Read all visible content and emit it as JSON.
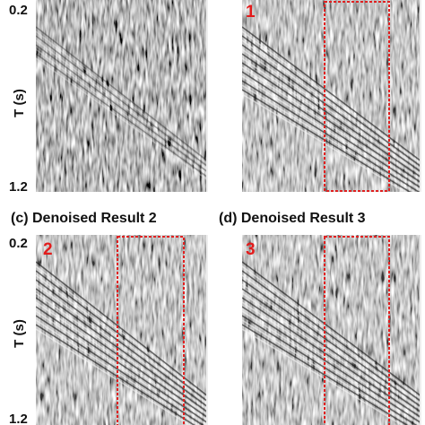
{
  "panels": [
    {
      "y_top": "0.2",
      "y_label": "T (s)",
      "y_bottom": "1.2"
    },
    {
      "marker": "1"
    },
    {
      "caption": "(c) Denoised Result 2",
      "marker": "2",
      "y_top": "0.2",
      "y_label": "T (s)",
      "y_bottom": "1.2"
    },
    {
      "caption": "(d) Denoised Result 3",
      "marker": "3"
    }
  ]
}
